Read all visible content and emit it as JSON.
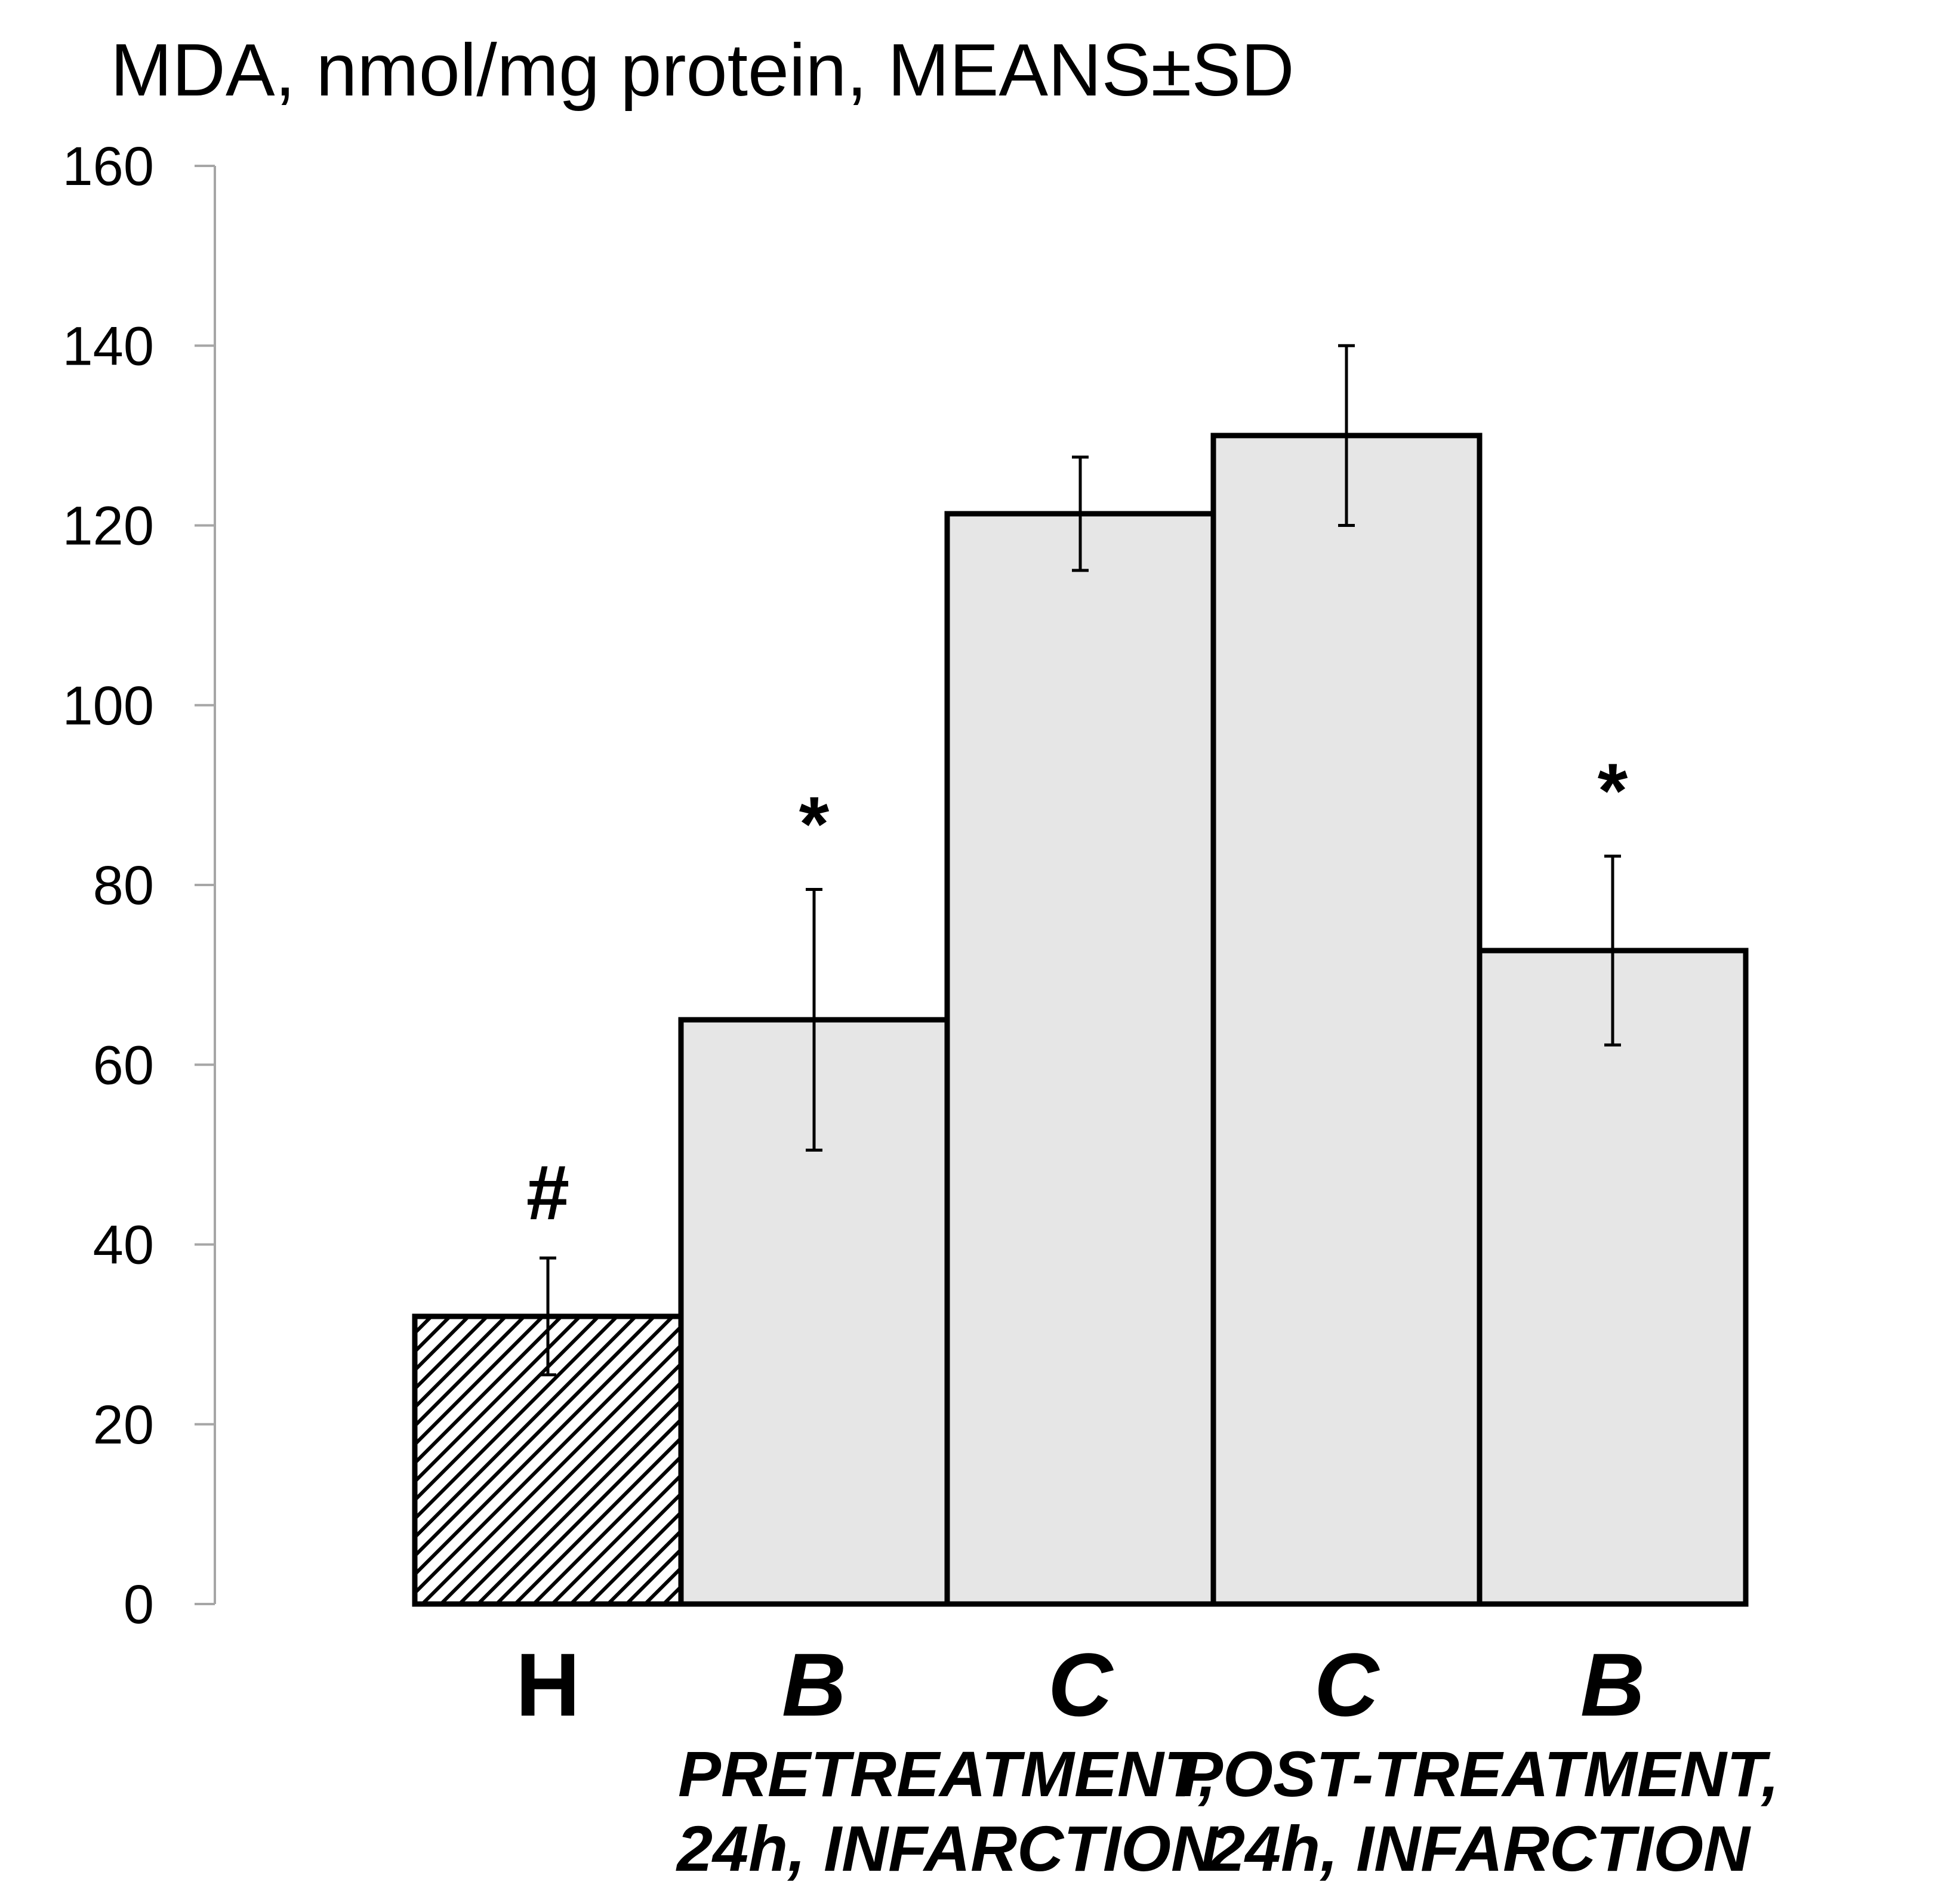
{
  "chart_data": {
    "type": "bar",
    "title": "MDA, nmol/mg protein, MEANS±SD",
    "ylim": [
      0,
      160
    ],
    "yticks": [
      "0",
      "20",
      "40",
      "60",
      "80",
      "100",
      "120",
      "140",
      "160"
    ],
    "categories": [
      "H",
      "B",
      "C",
      "C",
      "B"
    ],
    "values": [
      32,
      65,
      121.3,
      130,
      72.7
    ],
    "errors": [
      6.5,
      14.5,
      6.3,
      10,
      10.5
    ],
    "annotations": [
      "#",
      "*",
      "",
      "",
      "*"
    ],
    "fills": [
      "hatch",
      "#e6e6e6",
      "#e6e6e6",
      "#e6e6e6",
      "#e6e6e6"
    ],
    "groups": [
      {
        "line1": "PRETREATMENT,",
        "line2": "24h, INFARCTION"
      },
      {
        "line1": "POST-TREATMENT,",
        "line2": "24h, INFARCTION"
      }
    ],
    "xlabel": "",
    "ylabel": ""
  }
}
